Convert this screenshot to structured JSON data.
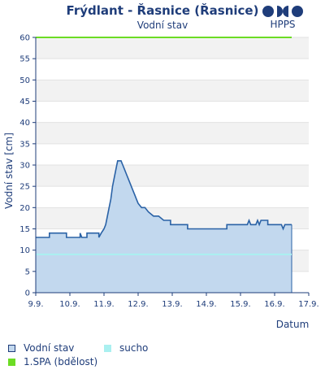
{
  "header": {
    "title": "Frýdlant - Řasnice (Řasnice)",
    "subtitle": "Vodní stav",
    "logo_text": "HPPS"
  },
  "chart_data": {
    "type": "area",
    "title": "Frýdlant - Řasnice (Řasnice)",
    "subtitle": "Vodní stav",
    "xlabel": "Datum",
    "ylabel": "Vodní stav [cm]",
    "ylim": [
      0,
      60
    ],
    "yticks": [
      0,
      5,
      10,
      15,
      20,
      25,
      30,
      35,
      40,
      45,
      50,
      55,
      60
    ],
    "xlim": [
      9.0,
      17.0
    ],
    "xticks": [
      {
        "x": 9,
        "label": "9.9."
      },
      {
        "x": 10,
        "label": "10.9."
      },
      {
        "x": 11,
        "label": "11.9."
      },
      {
        "x": 12,
        "label": "12.9."
      },
      {
        "x": 13,
        "label": "13.9."
      },
      {
        "x": 14,
        "label": "14.9."
      },
      {
        "x": 15,
        "label": "15.9."
      },
      {
        "x": 16,
        "label": "16.9."
      },
      {
        "x": 17,
        "label": "17.9."
      }
    ],
    "grid": true,
    "legend_placement": "bottom",
    "series": [
      {
        "name": "Vodní stav",
        "color": "#2a62a6",
        "fill": "#c2d8ee",
        "points": [
          [
            9.0,
            13
          ],
          [
            9.4,
            13
          ],
          [
            9.4,
            14
          ],
          [
            9.9,
            14
          ],
          [
            9.9,
            13
          ],
          [
            10.3,
            13
          ],
          [
            10.3,
            14
          ],
          [
            10.35,
            13
          ],
          [
            10.5,
            13
          ],
          [
            10.5,
            14
          ],
          [
            10.85,
            14
          ],
          [
            10.85,
            13
          ],
          [
            10.92,
            14
          ],
          [
            11.0,
            15
          ],
          [
            11.05,
            16
          ],
          [
            11.1,
            18
          ],
          [
            11.15,
            20
          ],
          [
            11.2,
            22
          ],
          [
            11.25,
            25
          ],
          [
            11.3,
            27
          ],
          [
            11.35,
            29
          ],
          [
            11.4,
            31
          ],
          [
            11.5,
            31
          ],
          [
            11.55,
            30
          ],
          [
            11.6,
            29
          ],
          [
            11.65,
            28
          ],
          [
            11.7,
            27
          ],
          [
            11.75,
            26
          ],
          [
            11.8,
            25
          ],
          [
            11.85,
            24
          ],
          [
            11.9,
            23
          ],
          [
            11.95,
            22
          ],
          [
            12.0,
            21
          ],
          [
            12.1,
            20
          ],
          [
            12.2,
            20
          ],
          [
            12.3,
            19
          ],
          [
            12.45,
            18
          ],
          [
            12.6,
            18
          ],
          [
            12.75,
            17
          ],
          [
            12.95,
            17
          ],
          [
            12.95,
            16
          ],
          [
            13.45,
            16
          ],
          [
            13.45,
            15
          ],
          [
            14.6,
            15
          ],
          [
            14.6,
            16
          ],
          [
            15.2,
            16
          ],
          [
            15.25,
            17
          ],
          [
            15.3,
            16
          ],
          [
            15.45,
            16
          ],
          [
            15.5,
            17
          ],
          [
            15.55,
            16
          ],
          [
            15.6,
            17
          ],
          [
            15.8,
            17
          ],
          [
            15.8,
            16
          ],
          [
            16.2,
            16
          ],
          [
            16.25,
            15
          ],
          [
            16.3,
            16
          ],
          [
            16.5,
            16
          ]
        ]
      },
      {
        "name": "sucho",
        "color": "#aaf0f0",
        "points": [
          [
            9.0,
            9
          ],
          [
            16.5,
            9
          ]
        ]
      },
      {
        "name": "1.SPA (bdělost)",
        "color": "#6cdc24",
        "points": [
          [
            9.0,
            60
          ],
          [
            16.5,
            60
          ]
        ]
      }
    ]
  },
  "legend": {
    "items": [
      {
        "label": "Vodní stav",
        "color": "#c2d8ee",
        "border": "#1f3d7a"
      },
      {
        "label": "sucho",
        "color": "#aaf0f0",
        "border": "#aaf0f0"
      },
      {
        "label": "1.SPA (bdělost)",
        "color": "#6cdc24",
        "border": "#6cdc24"
      }
    ]
  }
}
